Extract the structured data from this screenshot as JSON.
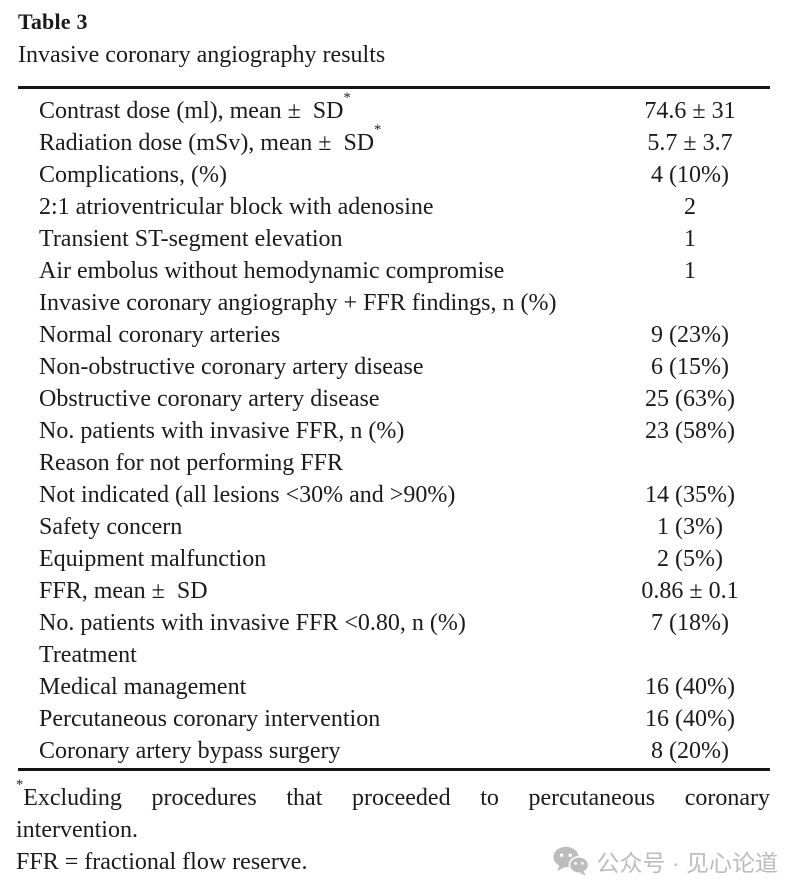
{
  "header": {
    "label": "Table 3",
    "caption": "Invasive coronary angiography results"
  },
  "table": {
    "rows": [
      {
        "label": "Contrast dose (ml), mean ±  SD",
        "sup": "*",
        "value": "74.6 ± 31"
      },
      {
        "label": "Radiation dose (mSv), mean ±  SD",
        "sup": "*",
        "value": "5.7 ± 3.7"
      },
      {
        "label": "Complications, (%)",
        "sup": "",
        "value": "4 (10%)"
      },
      {
        "label": "2:1 atrioventricular block with adenosine",
        "sup": "",
        "value": "2"
      },
      {
        "label": "Transient ST-segment elevation",
        "sup": "",
        "value": "1"
      },
      {
        "label": "Air embolus without hemodynamic compromise",
        "sup": "",
        "value": "1"
      },
      {
        "label": "Invasive coronary angiography + FFR findings, n (%)",
        "sup": "",
        "value": ""
      },
      {
        "label": "Normal coronary arteries",
        "sup": "",
        "value": "9 (23%)"
      },
      {
        "label": "Non-obstructive coronary artery disease",
        "sup": "",
        "value": "6 (15%)"
      },
      {
        "label": "Obstructive coronary artery disease",
        "sup": "",
        "value": "25 (63%)"
      },
      {
        "label": "No. patients with invasive FFR, n (%)",
        "sup": "",
        "value": "23 (58%)"
      },
      {
        "label": "Reason for not performing FFR",
        "sup": "",
        "value": ""
      },
      {
        "label": "Not indicated (all lesions <30% and >90%)",
        "sup": "",
        "value": "14 (35%)"
      },
      {
        "label": "Safety concern",
        "sup": "",
        "value": "1 (3%)"
      },
      {
        "label": "Equipment malfunction",
        "sup": "",
        "value": "2 (5%)"
      },
      {
        "label": "FFR, mean ±  SD",
        "sup": "",
        "value": "0.86 ± 0.1"
      },
      {
        "label": "No. patients with invasive FFR <0.80, n (%)",
        "sup": "",
        "value": "7 (18%)"
      },
      {
        "label": "Treatment",
        "sup": "",
        "value": ""
      },
      {
        "label": "Medical management",
        "sup": "",
        "value": "16 (40%)"
      },
      {
        "label": "Percutaneous coronary intervention",
        "sup": "",
        "value": "16 (40%)"
      },
      {
        "label": "Coronary artery bypass surgery",
        "sup": "",
        "value": "8 (20%)"
      }
    ]
  },
  "footnotes": {
    "marker": "*",
    "line1": "Excluding procedures that proceeded to percutaneous coronary",
    "line2": "intervention.",
    "line3": "FFR = fractional flow reserve."
  },
  "watermark": {
    "icon": "wechat-icon",
    "text": "公众号 · 见心论道",
    "color": "#bcbcbc"
  }
}
